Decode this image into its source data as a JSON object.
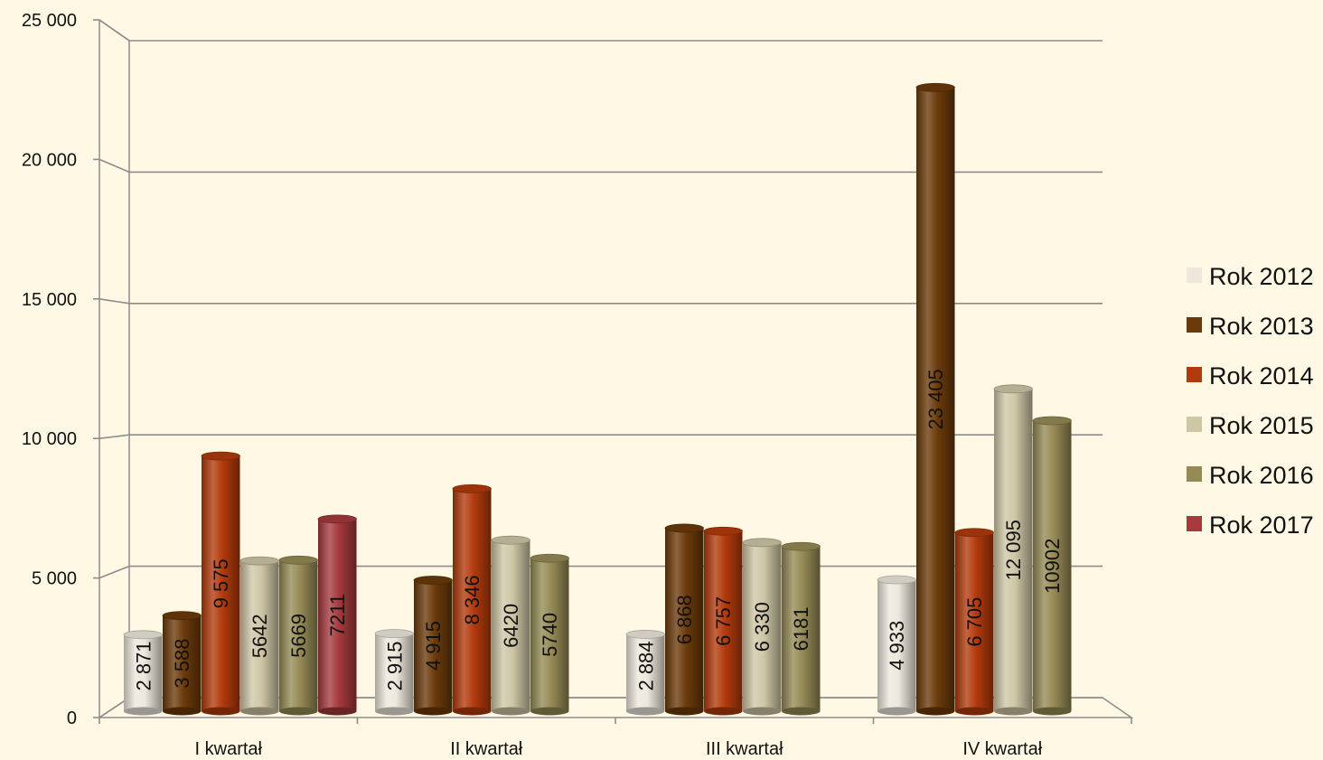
{
  "chart_data": {
    "type": "bar",
    "title": "",
    "xlabel": "",
    "ylabel": "",
    "ylim": [
      0,
      25000
    ],
    "yticks": [
      0,
      5000,
      10000,
      15000,
      20000,
      25000
    ],
    "ytick_labels": [
      "0",
      "5 000",
      "10 000",
      "15 000",
      "20 000",
      "25 000"
    ],
    "grid": true,
    "legend_position": "right",
    "categories": [
      "I kwartał",
      "II kwartał",
      "III kwartał",
      "IV kwartał"
    ],
    "series": [
      {
        "name": "Rok 2012",
        "color": "#ece8dc",
        "values": [
          2871,
          2915,
          2884,
          4933
        ],
        "labels": [
          "2 871",
          "2 915",
          "2 884",
          "4 933"
        ]
      },
      {
        "name": "Rok 2013",
        "color": "#6b3a0a",
        "values": [
          3588,
          4915,
          6868,
          23405
        ],
        "labels": [
          "3 588",
          "4 915",
          "6 868",
          "23 405"
        ]
      },
      {
        "name": "Rok 2014",
        "color": "#b23a0c",
        "values": [
          9575,
          8346,
          6757,
          6705
        ],
        "labels": [
          "9 575",
          "8 346",
          "6 757",
          "6 705"
        ]
      },
      {
        "name": "Rok 2015",
        "color": "#cfc6a6",
        "values": [
          5642,
          6420,
          6330,
          12095
        ],
        "labels": [
          "5642",
          "6420",
          "6 330",
          "12 095"
        ]
      },
      {
        "name": "Rok 2016",
        "color": "#958a55",
        "values": [
          5669,
          5740,
          6181,
          10902
        ],
        "labels": [
          "5669",
          "5740",
          "6181",
          "10902"
        ]
      },
      {
        "name": "Rok 2017",
        "color": "#a5393c",
        "values": [
          7211,
          null,
          null,
          null
        ],
        "labels": [
          "7211",
          "",
          "",
          ""
        ]
      }
    ]
  }
}
